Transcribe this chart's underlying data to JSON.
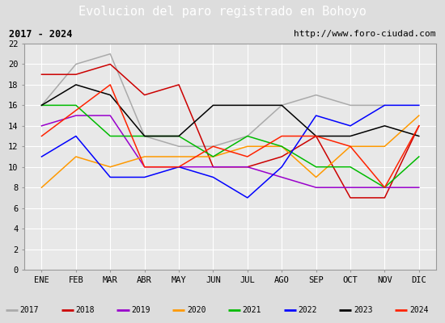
{
  "title": "Evolucion del paro registrado en Bohoyo",
  "subtitle_left": "2017 - 2024",
  "subtitle_right": "http://www.foro-ciudad.com",
  "ylim": [
    0,
    22
  ],
  "yticks": [
    0,
    2,
    4,
    6,
    8,
    10,
    12,
    14,
    16,
    18,
    20,
    22
  ],
  "months": [
    "ENE",
    "FEB",
    "MAR",
    "ABR",
    "MAY",
    "JUN",
    "JUL",
    "AGO",
    "SEP",
    "OCT",
    "NOV",
    "DIC"
  ],
  "series": {
    "2017": {
      "color": "#aaaaaa",
      "data": [
        16,
        20,
        21,
        13,
        12,
        12,
        13,
        16,
        17,
        16,
        16,
        null
      ]
    },
    "2018": {
      "color": "#cc0000",
      "data": [
        19,
        19,
        20,
        17,
        18,
        10,
        10,
        11,
        13,
        7,
        7,
        14
      ]
    },
    "2019": {
      "color": "#9900cc",
      "data": [
        14,
        15,
        15,
        10,
        10,
        null,
        10,
        null,
        8,
        8,
        8,
        8
      ]
    },
    "2020": {
      "color": "#ff9900",
      "data": [
        8,
        11,
        10,
        11,
        11,
        11,
        12,
        12,
        9,
        12,
        12,
        15
      ]
    },
    "2021": {
      "color": "#00bb00",
      "data": [
        16,
        16,
        13,
        13,
        13,
        11,
        13,
        12,
        10,
        10,
        8,
        11
      ]
    },
    "2022": {
      "color": "#0000ff",
      "data": [
        11,
        13,
        9,
        9,
        10,
        9,
        7,
        10,
        15,
        14,
        16,
        16
      ]
    },
    "2023": {
      "color": "#000000",
      "data": [
        16,
        18,
        17,
        13,
        13,
        16,
        16,
        16,
        13,
        13,
        14,
        13
      ]
    },
    "2024": {
      "color": "#ff2200",
      "data": [
        13,
        null,
        18,
        10,
        10,
        12,
        11,
        13,
        13,
        12,
        8,
        14
      ]
    }
  },
  "background_color": "#dddddd",
  "plot_bg_color": "#e8e8e8",
  "title_bg_color": "#4499ee",
  "title_color": "white",
  "subtitle_bg_color": "#f2f2f2",
  "legend_bg_color": "#f2f2f2",
  "border_color": "#999999"
}
